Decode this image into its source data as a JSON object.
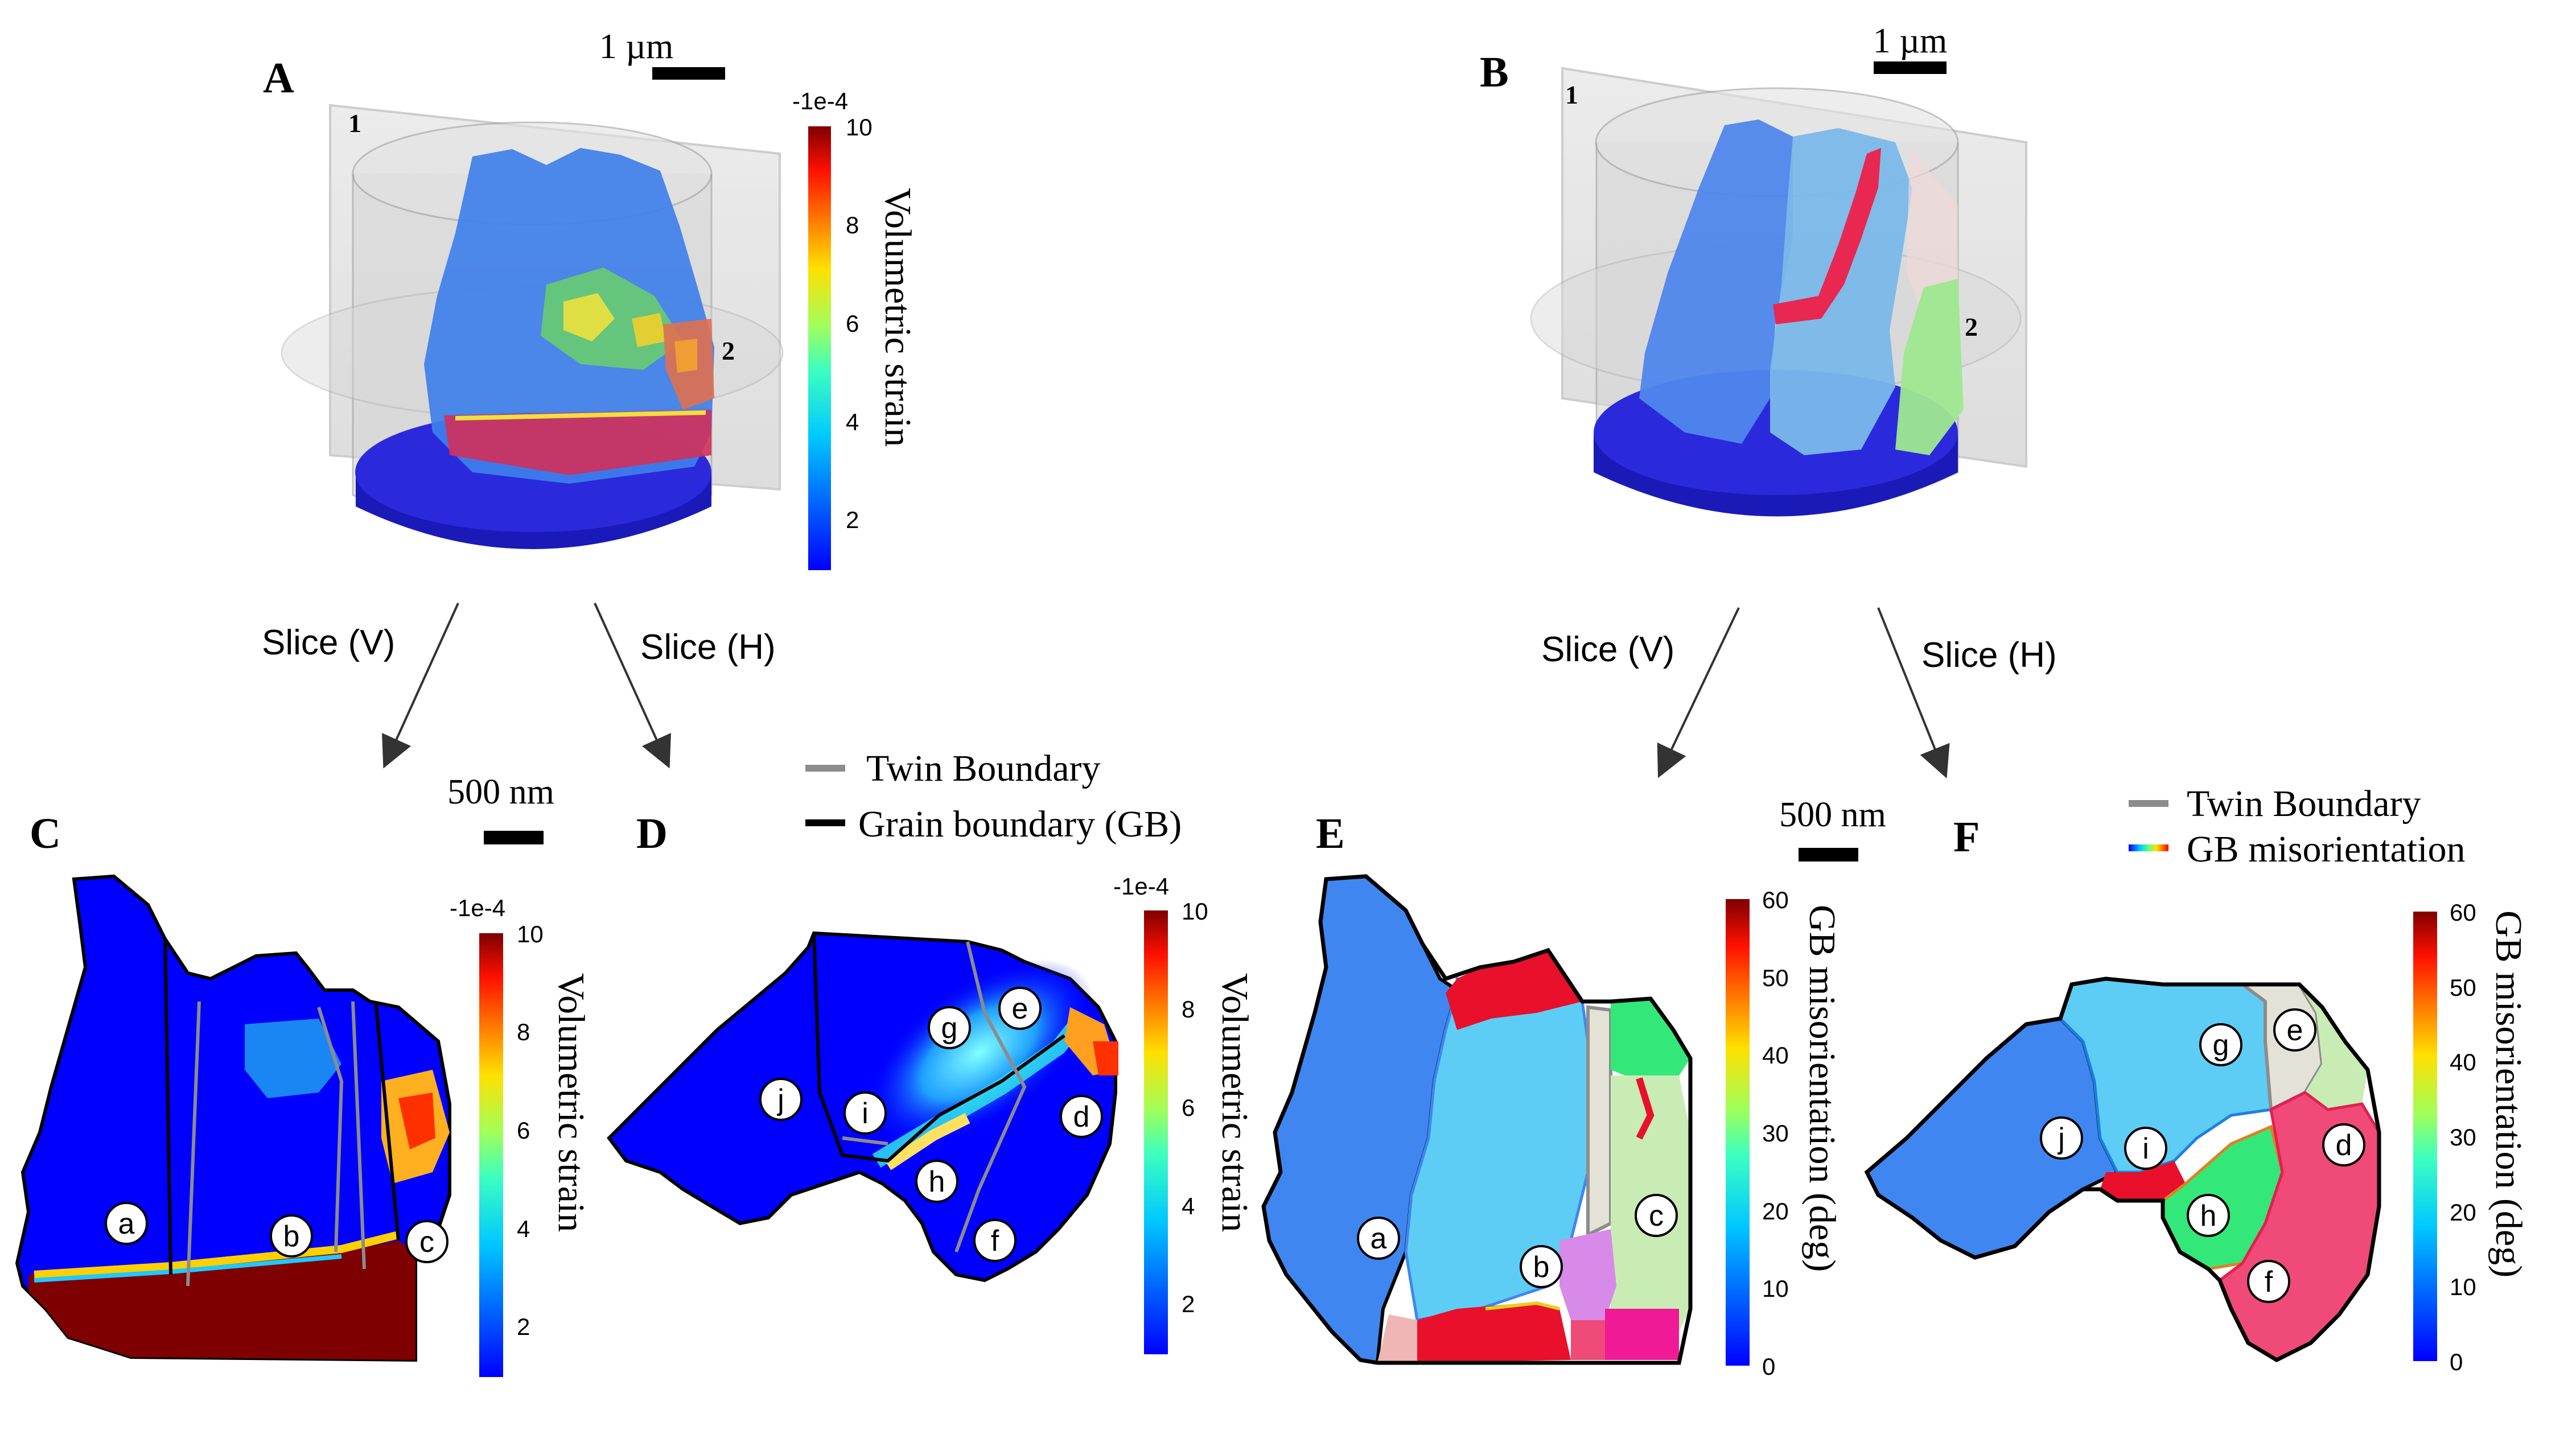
{
  "panels": {
    "A": {
      "letter": "A",
      "scale": "1 µm",
      "markers": [
        "1",
        "2"
      ]
    },
    "B": {
      "letter": "B",
      "scale": "1 µm",
      "markers": [
        "1",
        "2"
      ]
    },
    "C": {
      "letter": "C",
      "scale": "500 nm",
      "grains": [
        "a",
        "b",
        "c"
      ]
    },
    "D": {
      "letter": "D",
      "grains": [
        "j",
        "i",
        "g",
        "e",
        "d",
        "h",
        "f"
      ]
    },
    "E": {
      "letter": "E",
      "scale": "500 nm",
      "grains": [
        "a",
        "b",
        "c"
      ]
    },
    "F": {
      "letter": "F",
      "grains": [
        "j",
        "i",
        "g",
        "e",
        "d",
        "h",
        "f"
      ]
    }
  },
  "arrows": {
    "left_v": "Slice (V)",
    "left_h": "Slice (H)",
    "right_v": "Slice (V)",
    "right_h": "Slice (H)"
  },
  "legend_left": {
    "twin": "Twin Boundary",
    "gb": "Grain boundary (GB)",
    "twin_color": "#8c8c8c",
    "gb_color": "#000000"
  },
  "legend_right": {
    "twin": "Twin Boundary",
    "gb": "GB misorientation",
    "twin_color": "#8c8c8c"
  },
  "colorbars": {
    "strain_A": {
      "title": "Volumetric strain",
      "multiplier": "-1e-4",
      "ticks": [
        "10",
        "8",
        "6",
        "4",
        "2"
      ]
    },
    "strain_C": {
      "title": "Volumetric strain",
      "multiplier": "-1e-4",
      "ticks": [
        "10",
        "8",
        "6",
        "4",
        "2"
      ]
    },
    "strain_D": {
      "title": "Volumetric strain",
      "multiplier": "-1e-4",
      "ticks": [
        "10",
        "8",
        "6",
        "4",
        "2"
      ]
    },
    "misor_E": {
      "title": "GB misorientation (deg)",
      "ticks": [
        "60",
        "50",
        "40",
        "30",
        "20",
        "10",
        "0"
      ]
    },
    "misor_F": {
      "title": "GB misorientation (deg)",
      "ticks": [
        "60",
        "50",
        "40",
        "30",
        "20",
        "10",
        "0"
      ]
    }
  },
  "colors": {
    "jet_low": "#0000ff",
    "jet_high": "#7f0000",
    "grain_blue": "#3f86f0",
    "grain_lightblue": "#5ecdf5",
    "grain_beige": "#e4e1d6",
    "grain_green": "#c9ecb4",
    "grain_pink": "#f04a78",
    "grain_emerald": "#33e878",
    "grain_red": "#e8102a"
  }
}
